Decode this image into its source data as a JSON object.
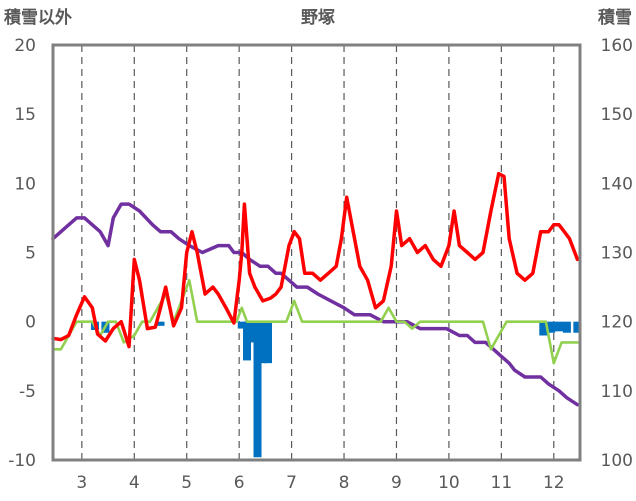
{
  "chart_data": {
    "type": "line",
    "title": "野塚",
    "y_left_label": "積雪以外",
    "y_right_label": "積雪",
    "xlim": [
      2.45,
      12.5
    ],
    "x_ticks": [
      3,
      4,
      5,
      6,
      7,
      8,
      9,
      10,
      11,
      12
    ],
    "x_tick_labels": [
      "3",
      "4",
      "5",
      "6",
      "7",
      "8",
      "9",
      "10",
      "11",
      "12"
    ],
    "ylim_left": [
      -10,
      20
    ],
    "y_left_ticks": [
      -10,
      -5,
      0,
      5,
      10,
      15,
      20
    ],
    "y_left_tick_labels": [
      "-10",
      "-5",
      "0",
      "5",
      "10",
      "15",
      "20"
    ],
    "ylim_right": [
      100,
      160
    ],
    "y_right_ticks": [
      100,
      110,
      120,
      130,
      140,
      150,
      160
    ],
    "y_right_tick_labels": [
      "100",
      "110",
      "120",
      "130",
      "140",
      "150",
      "160"
    ],
    "grid": {
      "vertical": "dashed",
      "horizontal": "none"
    },
    "colors": {
      "red": "#ff0000",
      "green": "#92d050",
      "blue": "#0070c0",
      "purple": "#7030a0",
      "frame": "#808080"
    },
    "series": [
      {
        "color": "red",
        "axis": "left",
        "kind": "line",
        "x": [
          2.45,
          2.6,
          2.75,
          2.9,
          3.05,
          3.2,
          3.3,
          3.45,
          3.6,
          3.75,
          3.9,
          4.0,
          4.1,
          4.25,
          4.4,
          4.5,
          4.6,
          4.75,
          4.9,
          5.0,
          5.1,
          5.2,
          5.35,
          5.5,
          5.6,
          5.75,
          5.9,
          6.0,
          6.05,
          6.1,
          6.2,
          6.3,
          6.45,
          6.6,
          6.7,
          6.8,
          6.95,
          7.05,
          7.15,
          7.25,
          7.4,
          7.55,
          7.7,
          7.85,
          7.95,
          8.05,
          8.15,
          8.3,
          8.45,
          8.6,
          8.75,
          8.9,
          9.0,
          9.1,
          9.25,
          9.4,
          9.55,
          9.7,
          9.85,
          10.0,
          10.1,
          10.2,
          10.35,
          10.5,
          10.65,
          10.8,
          10.95,
          11.05,
          11.15,
          11.3,
          11.45,
          11.6,
          11.75,
          11.9,
          12.0,
          12.1,
          12.2,
          12.3,
          12.45
        ],
        "y": [
          -1.2,
          -1.3,
          -1.0,
          0.5,
          1.8,
          1.0,
          -0.9,
          -1.4,
          -0.5,
          0.0,
          -1.8,
          4.5,
          3.0,
          -0.5,
          -0.4,
          1.0,
          2.5,
          -0.3,
          1.0,
          5.0,
          6.5,
          5.0,
          2.0,
          2.5,
          2.0,
          1.0,
          -0.1,
          3.0,
          5.0,
          8.5,
          3.5,
          2.5,
          1.5,
          1.7,
          2.0,
          2.5,
          5.5,
          6.5,
          6.0,
          3.5,
          3.5,
          3.0,
          3.5,
          4.0,
          6.0,
          9.0,
          7.0,
          4.0,
          3.0,
          1.0,
          1.5,
          4.0,
          8.0,
          5.5,
          6.0,
          5.0,
          5.5,
          4.5,
          4.0,
          5.5,
          8.0,
          5.5,
          5.0,
          4.5,
          5.0,
          8.0,
          10.7,
          10.5,
          6.0,
          3.5,
          3.0,
          3.5,
          6.5,
          6.5,
          7.0,
          7.0,
          6.5,
          6.0,
          4.5
        ]
      },
      {
        "color": "green",
        "axis": "left",
        "kind": "line",
        "x": [
          2.45,
          2.6,
          2.75,
          2.9,
          3.05,
          3.2,
          3.35,
          3.5,
          3.65,
          3.8,
          4.0,
          4.15,
          4.3,
          4.45,
          4.6,
          4.75,
          4.9,
          5.05,
          5.2,
          5.35,
          5.5,
          5.65,
          5.8,
          5.95,
          6.05,
          6.15,
          6.3,
          6.45,
          6.6,
          6.75,
          6.9,
          7.05,
          7.2,
          7.35,
          7.5,
          7.65,
          7.8,
          7.95,
          8.1,
          8.25,
          8.4,
          8.55,
          8.7,
          8.85,
          9.0,
          9.15,
          9.3,
          9.45,
          9.6,
          9.75,
          9.9,
          10.05,
          10.2,
          10.35,
          10.5,
          10.65,
          10.8,
          10.95,
          11.1,
          11.25,
          11.4,
          11.55,
          11.7,
          11.85,
          12.0,
          12.15,
          12.3,
          12.45
        ],
        "y": [
          -2.0,
          -2.0,
          -1.0,
          0.0,
          0.0,
          0.0,
          -1.0,
          0.0,
          0.0,
          -1.5,
          -1.0,
          0.0,
          0.0,
          1.0,
          2.0,
          0.0,
          1.5,
          3.0,
          0.0,
          0.0,
          0.0,
          0.0,
          0.0,
          0.0,
          1.0,
          0.0,
          0.0,
          0.0,
          0.0,
          0.0,
          0.0,
          1.5,
          0.0,
          0.0,
          0.0,
          0.0,
          0.0,
          0.0,
          0.0,
          0.0,
          0.0,
          0.0,
          0.0,
          1.0,
          0.0,
          0.0,
          -0.5,
          0.0,
          0.0,
          0.0,
          0.0,
          0.0,
          0.0,
          0.0,
          0.0,
          0.0,
          -2.0,
          -1.0,
          0.0,
          0.0,
          0.0,
          0.0,
          0.0,
          0.0,
          -3.0,
          -1.5,
          -1.5,
          -1.5
        ]
      },
      {
        "color": "blue",
        "axis": "left",
        "kind": "bar",
        "x": [
          3.25,
          3.45,
          4.5,
          6.05,
          6.15,
          6.25,
          6.35,
          6.45,
          6.55,
          11.8,
          11.95,
          12.1,
          12.25,
          12.45
        ],
        "y": [
          -0.6,
          -0.8,
          -0.3,
          -0.5,
          -2.8,
          -1.5,
          -9.8,
          -3.0,
          -3.0,
          -1.0,
          -0.8,
          -0.7,
          -0.8,
          -0.8
        ]
      },
      {
        "color": "purple",
        "axis": "right",
        "kind": "line",
        "x": [
          2.45,
          2.6,
          2.75,
          2.9,
          3.05,
          3.2,
          3.35,
          3.5,
          3.6,
          3.75,
          3.9,
          4.1,
          4.35,
          4.5,
          4.7,
          4.85,
          5.05,
          5.3,
          5.6,
          5.8,
          5.9,
          6.05,
          6.2,
          6.4,
          6.55,
          6.7,
          6.8,
          6.95,
          7.1,
          7.3,
          7.5,
          7.75,
          8.0,
          8.2,
          8.5,
          8.75,
          9.0,
          9.2,
          9.45,
          9.7,
          9.95,
          10.2,
          10.35,
          10.5,
          10.7,
          10.85,
          11.0,
          11.15,
          11.25,
          11.45,
          11.6,
          11.75,
          11.9,
          12.1,
          12.25,
          12.45
        ],
        "y": [
          132,
          133,
          134,
          135,
          135,
          134,
          133,
          131,
          135,
          137,
          137,
          136,
          134,
          133,
          133,
          132,
          131,
          130,
          131,
          131,
          130,
          130,
          129,
          128,
          128,
          127,
          127,
          126,
          125,
          125,
          124,
          123,
          122,
          121,
          121,
          120,
          120,
          120,
          119,
          119,
          119,
          118,
          118,
          117,
          117,
          116,
          115,
          114,
          113,
          112,
          112,
          112,
          111,
          110,
          109,
          108
        ]
      }
    ]
  }
}
